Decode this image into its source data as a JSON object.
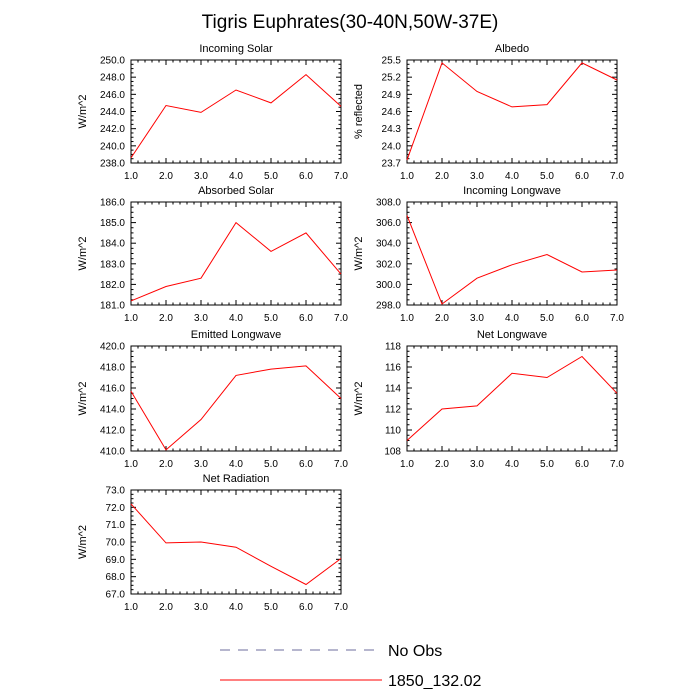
{
  "title": "Tigris Euphrates(30-40N,50W-37E)",
  "legend": {
    "placement": "bottom-center",
    "items": [
      {
        "label": "No Obs",
        "style": "dashed",
        "color": "#6e6e9e"
      },
      {
        "label": "1850_132.02",
        "style": "solid",
        "color": "#ff0000"
      }
    ]
  },
  "chart_data": [
    {
      "type": "line",
      "title": "Incoming Solar",
      "ylabel": "W/m^2",
      "x": [
        1,
        2,
        3,
        4,
        5,
        6,
        7
      ],
      "xlim": [
        1,
        7
      ],
      "xticks": [
        "1.0",
        "2.0",
        "3.0",
        "4.0",
        "5.0",
        "6.0",
        "7.0"
      ],
      "ylim": [
        238,
        250
      ],
      "yticks": [
        "238.0",
        "240.0",
        "242.0",
        "244.0",
        "246.0",
        "248.0",
        "250.0"
      ],
      "series": [
        {
          "name": "1850_132.02",
          "color": "#ff0000",
          "values": [
            238.6,
            244.7,
            243.9,
            246.5,
            245.0,
            248.3,
            244.6
          ]
        }
      ]
    },
    {
      "type": "line",
      "title": "Albedo",
      "ylabel": "% reflected",
      "x": [
        1,
        2,
        3,
        4,
        5,
        6,
        7
      ],
      "xlim": [
        1,
        7
      ],
      "xticks": [
        "1.0",
        "2.0",
        "3.0",
        "4.0",
        "5.0",
        "6.0",
        "7.0"
      ],
      "ylim": [
        23.7,
        25.5
      ],
      "yticks": [
        "23.7",
        "24.0",
        "24.3",
        "24.6",
        "24.9",
        "25.2",
        "25.5"
      ],
      "series": [
        {
          "name": "1850_132.02",
          "color": "#ff0000",
          "values": [
            23.75,
            25.45,
            24.95,
            24.68,
            24.72,
            25.45,
            25.15
          ]
        }
      ]
    },
    {
      "type": "line",
      "title": "Absorbed Solar",
      "ylabel": "W/m^2",
      "x": [
        1,
        2,
        3,
        4,
        5,
        6,
        7
      ],
      "xlim": [
        1,
        7
      ],
      "xticks": [
        "1.0",
        "2.0",
        "3.0",
        "4.0",
        "5.0",
        "6.0",
        "7.0"
      ],
      "ylim": [
        181,
        186
      ],
      "yticks": [
        "181.0",
        "182.0",
        "183.0",
        "184.0",
        "185.0",
        "186.0"
      ],
      "series": [
        {
          "name": "1850_132.02",
          "color": "#ff0000",
          "values": [
            181.2,
            181.9,
            182.3,
            185.0,
            183.6,
            184.5,
            182.5
          ]
        }
      ]
    },
    {
      "type": "line",
      "title": "Incoming Longwave",
      "ylabel": "W/m^2",
      "x": [
        1,
        2,
        3,
        4,
        5,
        6,
        7
      ],
      "xlim": [
        1,
        7
      ],
      "xticks": [
        "1.0",
        "2.0",
        "3.0",
        "4.0",
        "5.0",
        "6.0",
        "7.0"
      ],
      "ylim": [
        298,
        308
      ],
      "yticks": [
        "298.0",
        "300.0",
        "302.0",
        "304.0",
        "306.0",
        "308.0"
      ],
      "series": [
        {
          "name": "1850_132.02",
          "color": "#ff0000",
          "values": [
            306.7,
            298.1,
            300.6,
            301.9,
            302.9,
            301.2,
            301.4
          ]
        }
      ]
    },
    {
      "type": "line",
      "title": "Emitted Longwave",
      "ylabel": "W/m^2",
      "x": [
        1,
        2,
        3,
        4,
        5,
        6,
        7
      ],
      "xlim": [
        1,
        7
      ],
      "xticks": [
        "1.0",
        "2.0",
        "3.0",
        "4.0",
        "5.0",
        "6.0",
        "7.0"
      ],
      "ylim": [
        410,
        420
      ],
      "yticks": [
        "410.0",
        "412.0",
        "414.0",
        "416.0",
        "418.0",
        "420.0"
      ],
      "series": [
        {
          "name": "1850_132.02",
          "color": "#ff0000",
          "values": [
            415.7,
            410.1,
            413.0,
            417.2,
            417.8,
            418.1,
            415.0
          ]
        }
      ]
    },
    {
      "type": "line",
      "title": "Net Longwave",
      "ylabel": "W/m^2",
      "x": [
        1,
        2,
        3,
        4,
        5,
        6,
        7
      ],
      "xlim": [
        1,
        7
      ],
      "xticks": [
        "1.0",
        "2.0",
        "3.0",
        "4.0",
        "5.0",
        "6.0",
        "7.0"
      ],
      "ylim": [
        108,
        118
      ],
      "yticks": [
        "108",
        "110",
        "112",
        "114",
        "116",
        "118"
      ],
      "series": [
        {
          "name": "1850_132.02",
          "color": "#ff0000",
          "values": [
            109.0,
            112.0,
            112.3,
            115.4,
            115.0,
            117.0,
            113.5
          ]
        }
      ]
    },
    {
      "type": "line",
      "title": "Net Radiation",
      "ylabel": "W/m^2",
      "x": [
        1,
        2,
        3,
        4,
        5,
        6,
        7
      ],
      "xlim": [
        1,
        7
      ],
      "xticks": [
        "1.0",
        "2.0",
        "3.0",
        "4.0",
        "5.0",
        "6.0",
        "7.0"
      ],
      "ylim": [
        67,
        73
      ],
      "yticks": [
        "67.0",
        "68.0",
        "69.0",
        "70.0",
        "71.0",
        "72.0",
        "73.0"
      ],
      "series": [
        {
          "name": "1850_132.02",
          "color": "#ff0000",
          "values": [
            72.2,
            69.95,
            70.0,
            69.7,
            68.6,
            67.55,
            69.05
          ]
        }
      ]
    }
  ]
}
